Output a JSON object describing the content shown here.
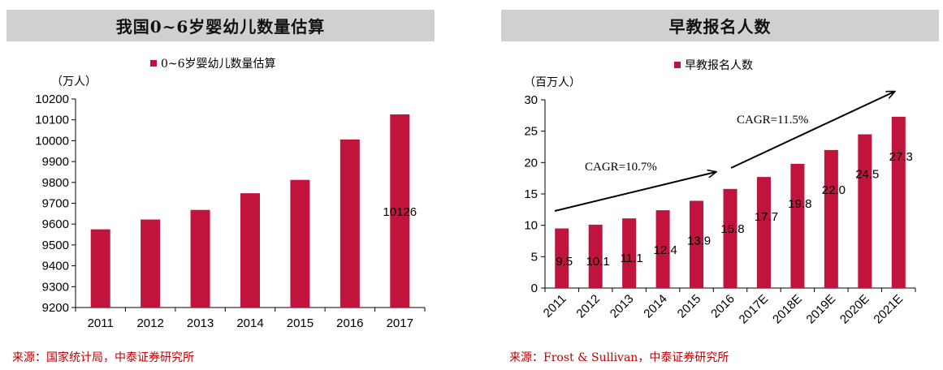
{
  "left_panel": {
    "title": "我国0~6岁婴幼儿数量估算",
    "source": "来源：国家统计局，中泰证券研究所"
  },
  "right_panel": {
    "title": "早教报名人数",
    "source": "来源：Frost & Sullivan，中泰证券研究所"
  },
  "chart_data": [
    {
      "type": "bar",
      "title": "",
      "unit": "（万人）",
      "legend": "0~6岁婴幼儿数量估算",
      "legend_position": "top",
      "bar_color": "#c0143c",
      "categories": [
        "2011",
        "2012",
        "2013",
        "2014",
        "2015",
        "2016",
        "2017"
      ],
      "series": [
        {
          "name": "0~6岁婴幼儿数量估算",
          "values": [
            9575,
            9622,
            9668,
            9748,
            9812,
            10006,
            10126
          ]
        }
      ],
      "ylim": [
        9200,
        10200
      ],
      "yticks": [
        9200,
        9300,
        9400,
        9500,
        9600,
        9700,
        9800,
        9900,
        10000,
        10100,
        10200
      ],
      "data_labels": [
        {
          "category": "2017",
          "text": "10126"
        }
      ],
      "grid": false
    },
    {
      "type": "bar",
      "title": "",
      "unit": "（百万人）",
      "legend": "早教报名人数",
      "legend_position": "top",
      "bar_color": "#c0143c",
      "categories": [
        "2011",
        "2012",
        "2013",
        "2014",
        "2015",
        "2016",
        "2017E",
        "2018E",
        "2019E",
        "2020E",
        "2021E"
      ],
      "series": [
        {
          "name": "早教报名人数",
          "values": [
            9.5,
            10.1,
            11.1,
            12.4,
            13.9,
            15.8,
            17.7,
            19.8,
            22.0,
            24.5,
            27.3
          ]
        }
      ],
      "data_labels": [
        "9.5",
        "10.1",
        "11.1",
        "12.4",
        "13.9",
        "15.8",
        "17.7",
        "19.8",
        "22.0",
        "24.5",
        "27.3"
      ],
      "ylim": [
        0,
        30
      ],
      "yticks": [
        0,
        5,
        10,
        15,
        20,
        25,
        30
      ],
      "annotations": [
        {
          "text": "CAGR=10.7%",
          "from": "2011",
          "to": "2016"
        },
        {
          "text": "CAGR=11.5%",
          "from": "2016",
          "to": "2021E"
        }
      ],
      "grid": false
    }
  ]
}
